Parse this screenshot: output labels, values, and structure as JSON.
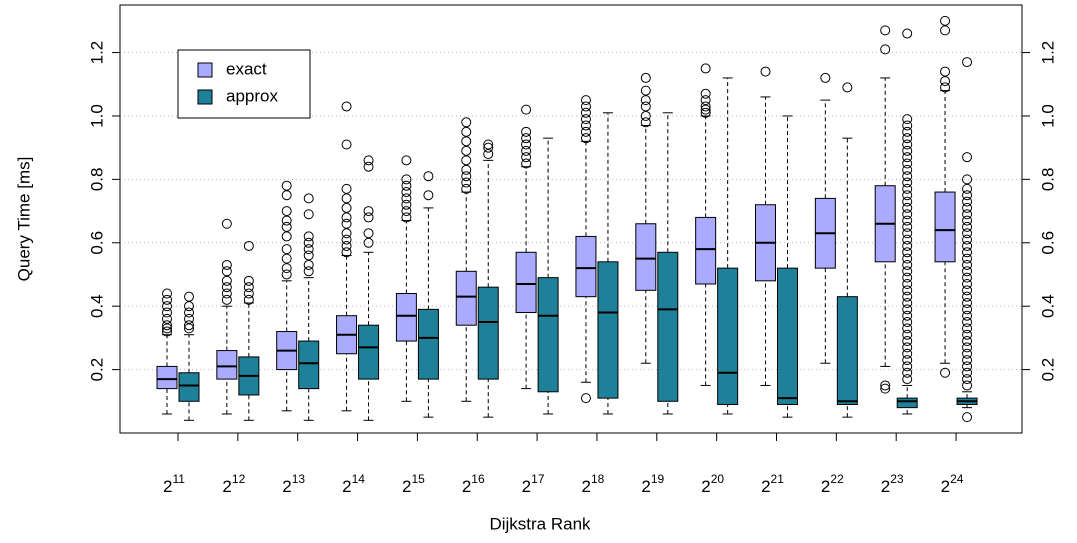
{
  "chart_data": {
    "type": "boxplot",
    "x_label": "Dijkstra Rank",
    "y_label": "Query Time [ms]",
    "categories": [
      {
        "base": "2",
        "exponent": "11"
      },
      {
        "base": "2",
        "exponent": "12"
      },
      {
        "base": "2",
        "exponent": "13"
      },
      {
        "base": "2",
        "exponent": "14"
      },
      {
        "base": "2",
        "exponent": "15"
      },
      {
        "base": "2",
        "exponent": "16"
      },
      {
        "base": "2",
        "exponent": "17"
      },
      {
        "base": "2",
        "exponent": "18"
      },
      {
        "base": "2",
        "exponent": "19"
      },
      {
        "base": "2",
        "exponent": "20"
      },
      {
        "base": "2",
        "exponent": "21"
      },
      {
        "base": "2",
        "exponent": "22"
      },
      {
        "base": "2",
        "exponent": "23"
      },
      {
        "base": "2",
        "exponent": "24"
      }
    ],
    "ylim": [
      0,
      1.35
    ],
    "yticks": [
      0.2,
      0.4,
      0.6,
      0.8,
      {
        "value": 1,
        "label": "1.0"
      },
      1.2
    ],
    "y2lim": [
      0,
      1.35
    ],
    "y2ticks": [
      0.2,
      0.4,
      0.6,
      0.8,
      {
        "value": 1,
        "label": "1.0"
      },
      1.2
    ],
    "grid": true,
    "legend": "top-left",
    "series": [
      {
        "name": "exact",
        "color": "#aaaaff",
        "boxes": [
          {
            "whislo": 0.06,
            "q1": 0.14,
            "med": 0.17,
            "q3": 0.21,
            "whishi": 0.31,
            "fliers": [
              0.32,
              0.33,
              0.34,
              0.36,
              0.38,
              0.4,
              0.42,
              0.44
            ]
          },
          {
            "whislo": 0.06,
            "q1": 0.17,
            "med": 0.21,
            "q3": 0.26,
            "whishi": 0.4,
            "fliers": [
              0.42,
              0.44,
              0.46,
              0.48,
              0.51,
              0.53,
              0.66
            ]
          },
          {
            "whislo": 0.07,
            "q1": 0.2,
            "med": 0.26,
            "q3": 0.32,
            "whishi": 0.48,
            "fliers": [
              0.5,
              0.52,
              0.55,
              0.58,
              0.62,
              0.65,
              0.67,
              0.7,
              0.75,
              0.78
            ]
          },
          {
            "whislo": 0.07,
            "q1": 0.25,
            "med": 0.31,
            "q3": 0.37,
            "whishi": 0.56,
            "fliers": [
              0.57,
              0.59,
              0.61,
              0.63,
              0.66,
              0.68,
              0.71,
              0.74,
              0.77,
              0.91,
              1.03
            ]
          },
          {
            "whislo": 0.1,
            "q1": 0.29,
            "med": 0.37,
            "q3": 0.44,
            "whishi": 0.67,
            "fliers": [
              0.68,
              0.7,
              0.72,
              0.74,
              0.76,
              0.78,
              0.8,
              0.86
            ]
          },
          {
            "whislo": 0.1,
            "q1": 0.34,
            "med": 0.43,
            "q3": 0.51,
            "whishi": 0.76,
            "fliers": [
              0.77,
              0.79,
              0.81,
              0.83,
              0.86,
              0.89,
              0.92,
              0.95,
              0.98
            ]
          },
          {
            "whislo": 0.14,
            "q1": 0.38,
            "med": 0.47,
            "q3": 0.57,
            "whishi": 0.84,
            "fliers": [
              0.85,
              0.87,
              0.89,
              0.91,
              0.93,
              0.95,
              1.02
            ]
          },
          {
            "whislo": 0.16,
            "q1": 0.43,
            "med": 0.52,
            "q3": 0.62,
            "whishi": 0.92,
            "fliers": [
              0.11,
              0.93,
              0.95,
              0.97,
              0.99,
              1.01,
              1.03,
              1.05
            ]
          },
          {
            "whislo": 0.22,
            "q1": 0.45,
            "med": 0.55,
            "q3": 0.66,
            "whishi": 0.97,
            "fliers": [
              0.98,
              1.0,
              1.03,
              1.05,
              1.08,
              1.12
            ]
          },
          {
            "whislo": 0.15,
            "q1": 0.47,
            "med": 0.58,
            "q3": 0.68,
            "whishi": 1.0,
            "fliers": [
              1.01,
              1.02,
              1.03,
              1.05,
              1.07,
              1.15
            ]
          },
          {
            "whislo": 0.15,
            "q1": 0.48,
            "med": 0.6,
            "q3": 0.72,
            "whishi": 1.06,
            "fliers": [
              1.14
            ]
          },
          {
            "whislo": 0.22,
            "q1": 0.52,
            "med": 0.63,
            "q3": 0.74,
            "whishi": 1.05,
            "fliers": [
              1.12
            ]
          },
          {
            "whislo": 0.21,
            "q1": 0.54,
            "med": 0.66,
            "q3": 0.78,
            "whishi": 1.12,
            "fliers": [
              0.14,
              0.15,
              1.21,
              1.27
            ]
          },
          {
            "whislo": 0.22,
            "q1": 0.54,
            "med": 0.64,
            "q3": 0.76,
            "whishi": 1.08,
            "fliers": [
              0.19,
              1.09,
              1.11,
              1.14,
              1.27,
              1.3
            ]
          }
        ]
      },
      {
        "name": "approx",
        "color": "#1f8099",
        "boxes": [
          {
            "whislo": 0.04,
            "q1": 0.1,
            "med": 0.15,
            "q3": 0.19,
            "whishi": 0.31,
            "fliers": [
              0.33,
              0.34,
              0.36,
              0.38,
              0.4,
              0.43
            ]
          },
          {
            "whislo": 0.04,
            "q1": 0.12,
            "med": 0.18,
            "q3": 0.24,
            "whishi": 0.41,
            "fliers": [
              0.42,
              0.44,
              0.46,
              0.48,
              0.59
            ]
          },
          {
            "whislo": 0.04,
            "q1": 0.14,
            "med": 0.22,
            "q3": 0.29,
            "whishi": 0.49,
            "fliers": [
              0.51,
              0.53,
              0.56,
              0.58,
              0.6,
              0.62,
              0.69,
              0.74
            ]
          },
          {
            "whislo": 0.04,
            "q1": 0.17,
            "med": 0.27,
            "q3": 0.34,
            "whishi": 0.57,
            "fliers": [
              0.6,
              0.63,
              0.68,
              0.7,
              0.84,
              0.86
            ]
          },
          {
            "whislo": 0.05,
            "q1": 0.17,
            "med": 0.3,
            "q3": 0.39,
            "whishi": 0.71,
            "fliers": [
              0.75,
              0.81
            ]
          },
          {
            "whislo": 0.05,
            "q1": 0.17,
            "med": 0.35,
            "q3": 0.46,
            "whishi": 0.86,
            "fliers": [
              0.88,
              0.9,
              0.91
            ]
          },
          {
            "whislo": 0.06,
            "q1": 0.13,
            "med": 0.37,
            "q3": 0.49,
            "whishi": 0.93,
            "fliers": []
          },
          {
            "whislo": 0.06,
            "q1": 0.11,
            "med": 0.38,
            "q3": 0.54,
            "whishi": 1.01,
            "fliers": []
          },
          {
            "whislo": 0.06,
            "q1": 0.1,
            "med": 0.39,
            "q3": 0.57,
            "whishi": 1.01,
            "fliers": []
          },
          {
            "whislo": 0.06,
            "q1": 0.09,
            "med": 0.19,
            "q3": 0.52,
            "whishi": 1.12,
            "fliers": []
          },
          {
            "whislo": 0.05,
            "q1": 0.09,
            "med": 0.11,
            "q3": 0.52,
            "whishi": 1.0,
            "fliers": []
          },
          {
            "whislo": 0.05,
            "q1": 0.09,
            "med": 0.1,
            "q3": 0.43,
            "whishi": 0.93,
            "fliers": [
              1.09
            ]
          },
          {
            "whislo": 0.06,
            "q1": 0.08,
            "med": 0.1,
            "q3": 0.11,
            "whishi": 0.15,
            "fliers": [
              0.17,
              0.19,
              0.21,
              0.23,
              0.25,
              0.27,
              0.29,
              0.31,
              0.33,
              0.35,
              0.37,
              0.39,
              0.41,
              0.43,
              0.45,
              0.47,
              0.49,
              0.51,
              0.53,
              0.55,
              0.57,
              0.59,
              0.61,
              0.63,
              0.65,
              0.67,
              0.69,
              0.71,
              0.73,
              0.75,
              0.77,
              0.79,
              0.81,
              0.83,
              0.85,
              0.87,
              0.89,
              0.91,
              0.93,
              0.95,
              0.97,
              0.99,
              1.26
            ]
          },
          {
            "whislo": 0.08,
            "q1": 0.09,
            "med": 0.1,
            "q3": 0.11,
            "whishi": 0.13,
            "fliers": [
              0.05,
              0.15,
              0.17,
              0.19,
              0.21,
              0.23,
              0.25,
              0.27,
              0.29,
              0.31,
              0.33,
              0.35,
              0.37,
              0.39,
              0.41,
              0.43,
              0.45,
              0.47,
              0.49,
              0.51,
              0.53,
              0.55,
              0.57,
              0.59,
              0.61,
              0.63,
              0.65,
              0.67,
              0.69,
              0.71,
              0.73,
              0.75,
              0.77,
              0.8,
              0.87,
              1.17
            ]
          }
        ]
      }
    ]
  }
}
